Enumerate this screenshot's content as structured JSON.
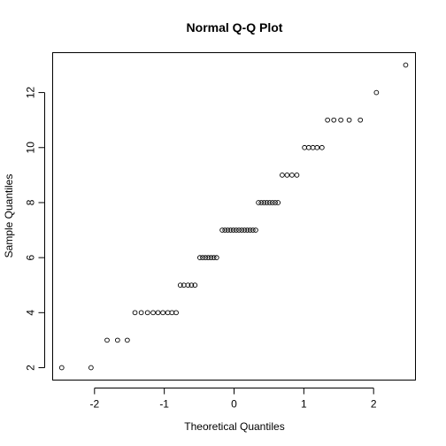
{
  "chart_data": {
    "type": "scatter",
    "title": "Normal Q-Q Plot",
    "xlabel": "Theoretical Quantiles",
    "ylabel": "Sample Quantiles",
    "xlim": [
      -2.6,
      2.6
    ],
    "ylim": [
      1.55,
      13.45
    ],
    "x_ticks": [
      -2,
      -1,
      0,
      1,
      2
    ],
    "y_ticks": [
      2,
      4,
      6,
      8,
      10,
      12
    ],
    "grid": false,
    "legend": "none",
    "marker": "open-circle",
    "point_color": "#000000",
    "points": [
      {
        "x": -2.47,
        "y": 2
      },
      {
        "x": -2.05,
        "y": 2
      },
      {
        "x": -1.82,
        "y": 3
      },
      {
        "x": -1.67,
        "y": 3
      },
      {
        "x": -1.53,
        "y": 3
      },
      {
        "x": -1.42,
        "y": 4
      },
      {
        "x": -1.33,
        "y": 4
      },
      {
        "x": -1.24,
        "y": 4
      },
      {
        "x": -1.16,
        "y": 4
      },
      {
        "x": -1.09,
        "y": 4
      },
      {
        "x": -1.02,
        "y": 4
      },
      {
        "x": -0.95,
        "y": 4
      },
      {
        "x": -0.89,
        "y": 4
      },
      {
        "x": -0.83,
        "y": 4
      },
      {
        "x": -0.77,
        "y": 5
      },
      {
        "x": -0.72,
        "y": 5
      },
      {
        "x": -0.66,
        "y": 5
      },
      {
        "x": -0.61,
        "y": 5
      },
      {
        "x": -0.56,
        "y": 5
      },
      {
        "x": -0.49,
        "y": 6
      },
      {
        "x": -0.45,
        "y": 6
      },
      {
        "x": -0.41,
        "y": 6
      },
      {
        "x": -0.37,
        "y": 6
      },
      {
        "x": -0.33,
        "y": 6
      },
      {
        "x": -0.29,
        "y": 6
      },
      {
        "x": -0.25,
        "y": 6
      },
      {
        "x": -0.17,
        "y": 7
      },
      {
        "x": -0.13,
        "y": 7
      },
      {
        "x": -0.09,
        "y": 7
      },
      {
        "x": -0.05,
        "y": 7
      },
      {
        "x": -0.01,
        "y": 7
      },
      {
        "x": 0.03,
        "y": 7
      },
      {
        "x": 0.07,
        "y": 7
      },
      {
        "x": 0.11,
        "y": 7
      },
      {
        "x": 0.15,
        "y": 7
      },
      {
        "x": 0.19,
        "y": 7
      },
      {
        "x": 0.23,
        "y": 7
      },
      {
        "x": 0.27,
        "y": 7
      },
      {
        "x": 0.31,
        "y": 7
      },
      {
        "x": 0.35,
        "y": 8
      },
      {
        "x": 0.39,
        "y": 8
      },
      {
        "x": 0.43,
        "y": 8
      },
      {
        "x": 0.47,
        "y": 8
      },
      {
        "x": 0.51,
        "y": 8
      },
      {
        "x": 0.55,
        "y": 8
      },
      {
        "x": 0.59,
        "y": 8
      },
      {
        "x": 0.63,
        "y": 8
      },
      {
        "x": 0.69,
        "y": 9
      },
      {
        "x": 0.76,
        "y": 9
      },
      {
        "x": 0.83,
        "y": 9
      },
      {
        "x": 0.9,
        "y": 9
      },
      {
        "x": 1.01,
        "y": 10
      },
      {
        "x": 1.07,
        "y": 10
      },
      {
        "x": 1.13,
        "y": 10
      },
      {
        "x": 1.19,
        "y": 10
      },
      {
        "x": 1.26,
        "y": 10
      },
      {
        "x": 1.34,
        "y": 11
      },
      {
        "x": 1.43,
        "y": 11
      },
      {
        "x": 1.53,
        "y": 11
      },
      {
        "x": 1.65,
        "y": 11
      },
      {
        "x": 1.81,
        "y": 11
      },
      {
        "x": 2.04,
        "y": 12
      },
      {
        "x": 2.46,
        "y": 13
      }
    ]
  }
}
